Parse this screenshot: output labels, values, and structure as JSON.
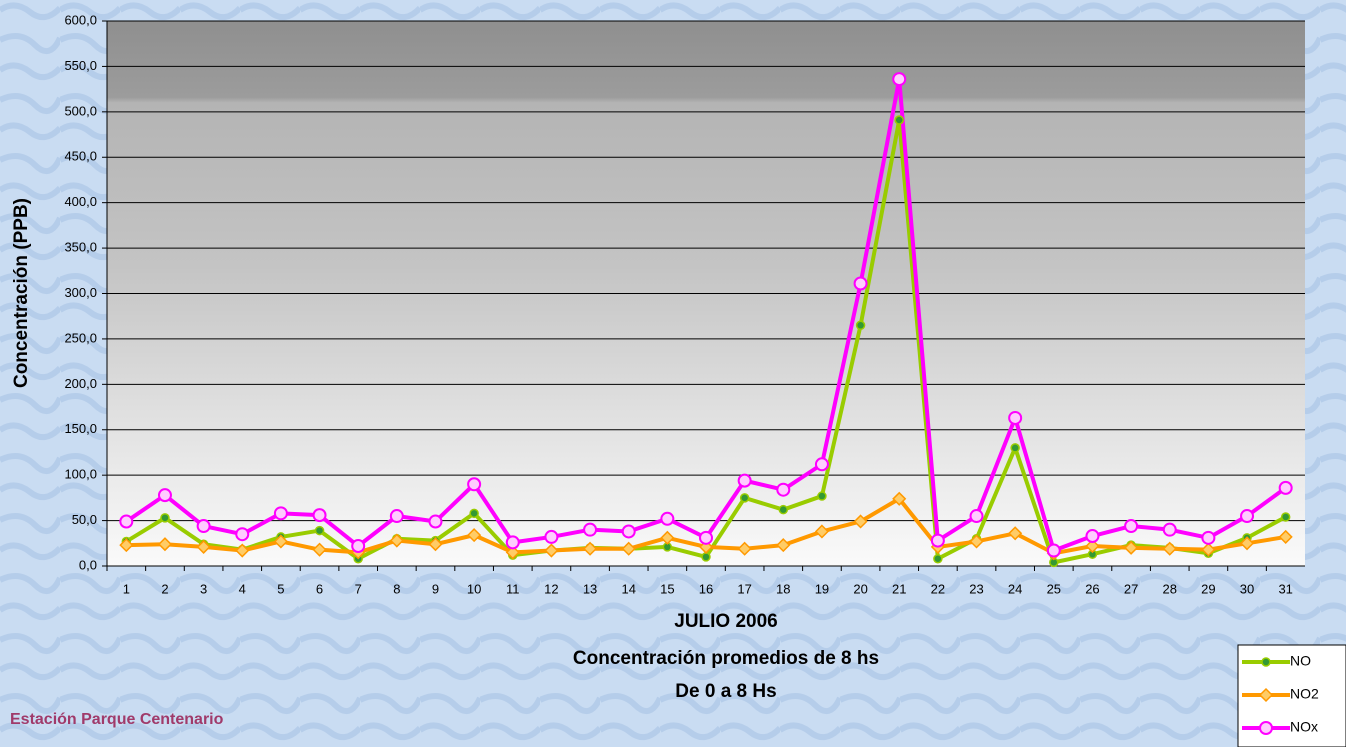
{
  "chart_data": {
    "type": "line",
    "y_label": "Concentración  (PPB)",
    "x_label": "JULIO 2006",
    "subtitle_lines": [
      "Concentración promedios de 8 hs",
      "De 0 a 8 Hs"
    ],
    "footer": "Estación Parque Centenario",
    "categories": [
      "1",
      "2",
      "3",
      "4",
      "5",
      "6",
      "7",
      "8",
      "9",
      "10",
      "11",
      "12",
      "13",
      "14",
      "15",
      "16",
      "17",
      "18",
      "19",
      "20",
      "21",
      "22",
      "23",
      "24",
      "25",
      "26",
      "27",
      "28",
      "29",
      "30",
      "31"
    ],
    "series": [
      {
        "name": "NO",
        "color": "#99cc00",
        "marker": "circle",
        "marker_fill": "#339933",
        "values": [
          27,
          53,
          24,
          18,
          32,
          39,
          8,
          30,
          28,
          58,
          12,
          17,
          20,
          19,
          21,
          10,
          75,
          62,
          77,
          265,
          491,
          8,
          30,
          130,
          4,
          13,
          23,
          20,
          14,
          31,
          54
        ]
      },
      {
        "name": "NO2",
        "color": "#ff9900",
        "marker": "diamond",
        "marker_fill": "#ffcc66",
        "values": [
          23,
          24,
          21,
          17,
          27,
          18,
          15,
          28,
          24,
          34,
          15,
          17,
          19,
          19,
          31,
          21,
          19,
          23,
          38,
          49,
          74,
          21,
          27,
          36,
          14,
          22,
          20,
          19,
          18,
          25,
          32
        ]
      },
      {
        "name": "NOx",
        "color": "#ff00ff",
        "marker": "circle",
        "marker_fill": "#ffccff",
        "values": [
          49,
          78,
          44,
          35,
          58,
          56,
          22,
          55,
          49,
          90,
          26,
          32,
          40,
          38,
          52,
          31,
          94,
          84,
          112,
          311,
          536,
          28,
          55,
          163,
          17,
          33,
          44,
          40,
          31,
          55,
          86
        ]
      }
    ],
    "ylim": [
      0,
      600
    ],
    "yticks": [
      {
        "value": 0,
        "label": "0,0"
      },
      {
        "value": 50,
        "label": "50,0"
      },
      {
        "value": 100,
        "label": "100,0"
      },
      {
        "value": 150,
        "label": "150,0"
      },
      {
        "value": 200,
        "label": "200,0"
      },
      {
        "value": 250,
        "label": "250,0"
      },
      {
        "value": 300,
        "label": "300,0"
      },
      {
        "value": 350,
        "label": "350,0"
      },
      {
        "value": 400,
        "label": "400,0"
      },
      {
        "value": 450,
        "label": "450,0"
      },
      {
        "value": 500,
        "label": "500,0"
      },
      {
        "value": 550,
        "label": "550,0"
      },
      {
        "value": 600,
        "label": "600,0"
      }
    ],
    "grid": true,
    "legend": "lower right"
  }
}
